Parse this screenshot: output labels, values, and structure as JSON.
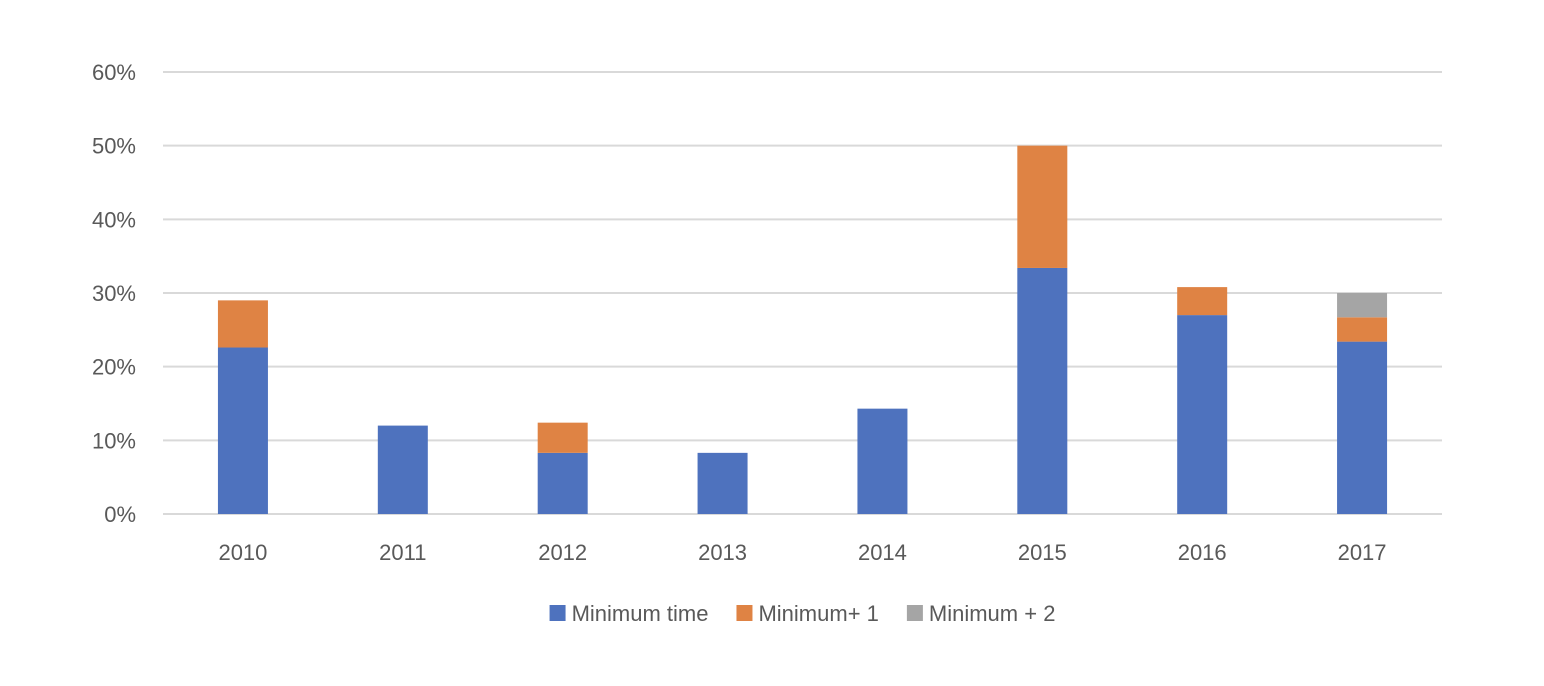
{
  "chart_data": {
    "type": "bar",
    "stacked": true,
    "title": "",
    "xlabel": "",
    "ylabel": "",
    "categories": [
      "2010",
      "2011",
      "2012",
      "2013",
      "2014",
      "2015",
      "2016",
      "2017"
    ],
    "series": [
      {
        "name": "Minimum time",
        "color": "#4e72be",
        "values": [
          22.6,
          12.0,
          8.3,
          8.3,
          14.3,
          33.4,
          27.0,
          23.4
        ]
      },
      {
        "name": "Minimum+ 1",
        "color": "#df8344",
        "values": [
          6.4,
          0,
          4.1,
          0,
          0,
          16.6,
          3.8,
          3.3
        ]
      },
      {
        "name": "Minimum + 2",
        "color": "#a5a5a5",
        "values": [
          0,
          0,
          0,
          0,
          0,
          0,
          0,
          3.3
        ]
      }
    ],
    "ylim": [
      0,
      60
    ],
    "yticks": [
      0,
      10,
      20,
      30,
      40,
      50,
      60
    ],
    "ytick_labels": [
      "0%",
      "10%",
      "20%",
      "30%",
      "40%",
      "50%",
      "60%"
    ],
    "y_unit": "%",
    "grid": true,
    "legend_position": "bottom"
  }
}
